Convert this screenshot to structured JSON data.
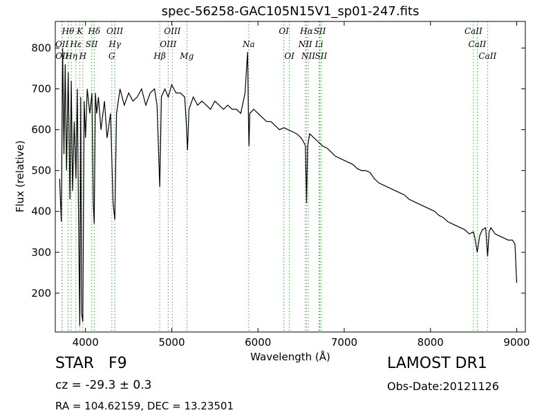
{
  "chart_data": {
    "type": "line",
    "title": "spec-56258-GAC105N15V1_sp01-247.fits",
    "xlabel": "Wavelength (Å)",
    "ylabel": "Flux (relative)",
    "xlim": [
      3650,
      9100
    ],
    "ylim": [
      105,
      865
    ],
    "x_ticks": [
      4000,
      5000,
      6000,
      7000,
      8000,
      9000
    ],
    "y_ticks": [
      200,
      300,
      400,
      500,
      600,
      700,
      800
    ],
    "grid": false,
    "series": [
      {
        "color": "#000000",
        "x": [
          3700,
          3720,
          3735,
          3750,
          3765,
          3780,
          3800,
          3820,
          3835,
          3850,
          3870,
          3890,
          3905,
          3920,
          3934,
          3945,
          3955,
          3969,
          3985,
          4000,
          4020,
          4050,
          4075,
          4090,
          4101,
          4115,
          4130,
          4150,
          4180,
          4220,
          4250,
          4290,
          4320,
          4340,
          4360,
          4400,
          4450,
          4500,
          4550,
          4600,
          4650,
          4700,
          4750,
          4800,
          4830,
          4861,
          4880,
          4920,
          4960,
          5000,
          5050,
          5100,
          5150,
          5170,
          5183,
          5200,
          5250,
          5300,
          5350,
          5400,
          5450,
          5500,
          5550,
          5600,
          5650,
          5700,
          5750,
          5800,
          5850,
          5870,
          5880,
          5890,
          5896,
          5905,
          5950,
          6000,
          6050,
          6100,
          6150,
          6200,
          6250,
          6300,
          6350,
          6400,
          6450,
          6500,
          6530,
          6550,
          6563,
          6575,
          6600,
          6650,
          6700,
          6750,
          6800,
          6850,
          6900,
          6950,
          7000,
          7050,
          7100,
          7150,
          7200,
          7250,
          7300,
          7350,
          7400,
          7450,
          7500,
          7550,
          7600,
          7650,
          7700,
          7750,
          7800,
          7850,
          7900,
          7950,
          8000,
          8050,
          8100,
          8150,
          8200,
          8250,
          8300,
          8350,
          8400,
          8450,
          8498,
          8520,
          8542,
          8570,
          8600,
          8640,
          8662,
          8680,
          8700,
          8750,
          8800,
          8850,
          8900,
          8950,
          8980,
          9000
        ],
        "y": [
          480,
          375,
          800,
          540,
          760,
          500,
          740,
          430,
          720,
          450,
          620,
          480,
          700,
          380,
          120,
          680,
          150,
          130,
          670,
          580,
          700,
          640,
          690,
          420,
          370,
          690,
          640,
          680,
          600,
          670,
          580,
          640,
          420,
          380,
          640,
          700,
          660,
          690,
          670,
          680,
          700,
          660,
          690,
          700,
          660,
          460,
          680,
          700,
          680,
          710,
          690,
          690,
          680,
          610,
          550,
          650,
          680,
          660,
          670,
          660,
          650,
          670,
          660,
          650,
          660,
          650,
          650,
          640,
          690,
          760,
          790,
          620,
          560,
          640,
          650,
          640,
          630,
          620,
          620,
          610,
          600,
          605,
          600,
          595,
          590,
          580,
          570,
          560,
          420,
          560,
          590,
          580,
          570,
          560,
          555,
          545,
          535,
          530,
          525,
          520,
          515,
          505,
          500,
          500,
          495,
          480,
          470,
          465,
          460,
          455,
          450,
          445,
          440,
          430,
          425,
          420,
          415,
          410,
          405,
          400,
          390,
          385,
          375,
          370,
          365,
          360,
          355,
          345,
          350,
          330,
          300,
          340,
          355,
          360,
          290,
          350,
          360,
          345,
          340,
          335,
          330,
          330,
          320,
          225
        ]
      }
    ],
    "lines": [
      {
        "label": "Hθ",
        "x": 3798,
        "row": 0
      },
      {
        "label": "K",
        "x": 3934,
        "row": 0
      },
      {
        "label": "Hδ",
        "x": 4101,
        "row": 0
      },
      {
        "label": "OIII",
        "x": 4340,
        "row": 0
      },
      {
        "label": "OIII",
        "x": 5007,
        "row": 0
      },
      {
        "label": "OI",
        "x": 6300,
        "row": 0
      },
      {
        "label": "Hα",
        "x": 6563,
        "row": 0
      },
      {
        "label": "SII",
        "x": 6716,
        "row": 0
      },
      {
        "label": "CaII",
        "x": 8498,
        "row": 0
      },
      {
        "label": "OII",
        "x": 3727,
        "row": 1
      },
      {
        "label": "Hε",
        "x": 3889,
        "row": 1
      },
      {
        "label": "SII",
        "x": 4072,
        "row": 1
      },
      {
        "label": "Hγ",
        "x": 4340,
        "row": 1
      },
      {
        "label": "NII",
        "x": 6548,
        "row": 1
      },
      {
        "label": "Li",
        "x": 6708,
        "row": 1
      },
      {
        "label": "CaII",
        "x": 8542,
        "row": 1
      },
      {
        "label": "OII",
        "x": 3729,
        "row": 2
      },
      {
        "label": "Hη",
        "x": 3835,
        "row": 2
      },
      {
        "label": "H",
        "x": 3969,
        "row": 2
      },
      {
        "label": "G",
        "x": 4305,
        "row": 2
      },
      {
        "label": "Hβ",
        "x": 4861,
        "row": 2
      },
      {
        "label": "Mg",
        "x": 5175,
        "row": 2
      },
      {
        "label": "Na",
        "x": 5893,
        "row": 1
      },
      {
        "label": "OIII",
        "x": 4959,
        "row": 1
      },
      {
        "label": "OI",
        "x": 6364,
        "row": 2
      },
      {
        "label": "NII",
        "x": 6583,
        "row": 2
      },
      {
        "label": "SII",
        "x": 6731,
        "row": 2
      },
      {
        "label": "CaII",
        "x": 8662,
        "row": 2
      }
    ]
  },
  "info": {
    "class_label": "STAR",
    "subclass_label": "F9",
    "cz_text": "cz = -29.3 ± 0.3",
    "radec_text": "RA = 104.62159, DEC = 13.23501",
    "survey_label": "LAMOST DR1",
    "date_text": "Obs-Date:20121126"
  }
}
